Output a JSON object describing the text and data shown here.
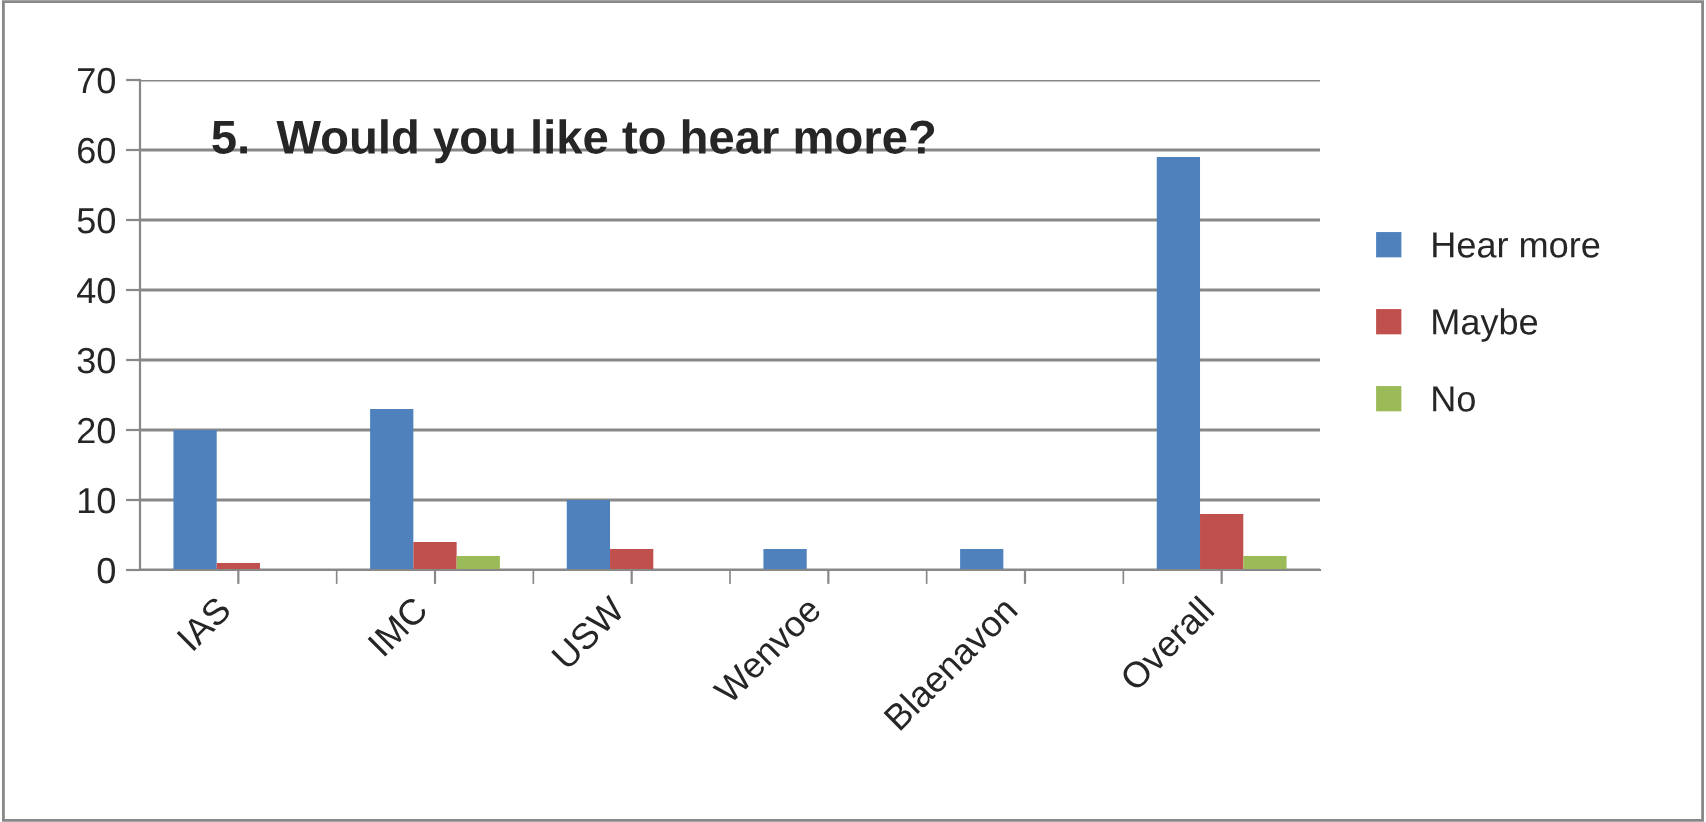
{
  "chart_data": {
    "type": "bar",
    "title": "5.  Would you like to hear more?",
    "categories": [
      "IAS",
      "IMC",
      "USW",
      "Wenvoe",
      "Blaenavon",
      "Overall"
    ],
    "series": [
      {
        "name": "Hear more",
        "color": "#4f81bd",
        "values": [
          20,
          23,
          10,
          3,
          3,
          59
        ]
      },
      {
        "name": "Maybe",
        "color": "#c0504d",
        "values": [
          1,
          4,
          3,
          0,
          0,
          8
        ]
      },
      {
        "name": "No",
        "color": "#9bbb59",
        "values": [
          0,
          2,
          0,
          0,
          0,
          2
        ]
      }
    ],
    "ylim": [
      0,
      70
    ],
    "yticks": [
      0,
      10,
      20,
      30,
      40,
      50,
      60,
      70
    ],
    "grid": "y",
    "legend": "right"
  }
}
